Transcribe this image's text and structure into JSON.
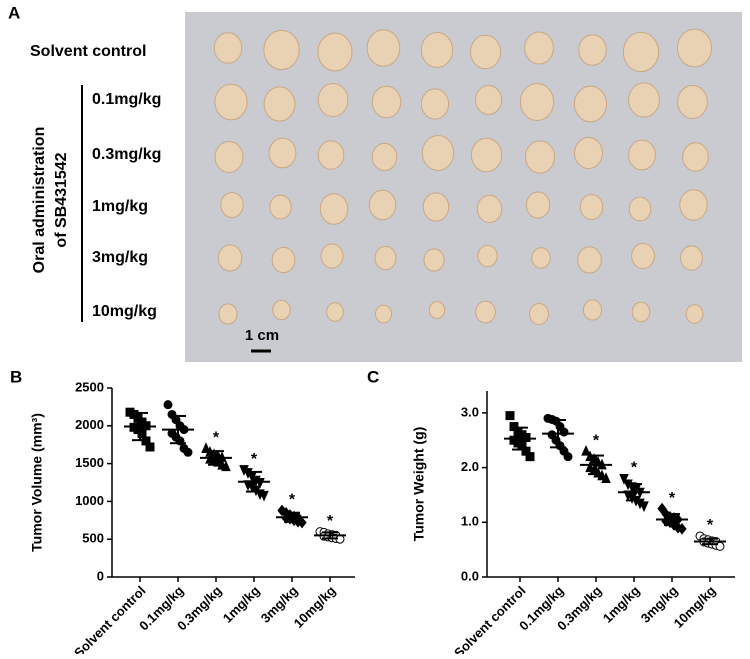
{
  "panel_a": {
    "label": "A",
    "rows": [
      "Solvent control",
      "0.1mg/kg",
      "0.3mg/kg",
      "1mg/kg",
      "3mg/kg",
      "10mg/kg"
    ],
    "group_label": [
      "Oral administration",
      "of SB431542"
    ],
    "scale_bar": "1 cm"
  },
  "chart_data": [
    {
      "type": "dot",
      "panel": "B",
      "ylabel": "Tumor Volume (mm³)",
      "categories": [
        "Solvent control",
        "0.1mg/kg",
        "0.3mg/kg",
        "1mg/kg",
        "3mg/kg",
        "10mg/kg"
      ],
      "markers": [
        "square",
        "circle",
        "triangle",
        "triangle-down",
        "diamond",
        "circle-open"
      ],
      "values": [
        [
          2180,
          2150,
          2100,
          2050,
          2000,
          1980,
          1950,
          1900,
          1800,
          1720
        ],
        [
          2280,
          2150,
          2080,
          2000,
          1950,
          1900,
          1850,
          1800,
          1700,
          1650
        ],
        [
          1700,
          1650,
          1620,
          1600,
          1580,
          1560,
          1540,
          1520,
          1480,
          1460
        ],
        [
          1420,
          1380,
          1330,
          1280,
          1250,
          1220,
          1200,
          1150,
          1100,
          1080
        ],
        [
          880,
          850,
          820,
          800,
          790,
          780,
          770,
          750,
          730,
          720
        ],
        [
          600,
          590,
          570,
          560,
          550,
          540,
          530,
          520,
          510,
          500
        ]
      ],
      "means": [
        1990,
        1950,
        1575,
        1260,
        790,
        550
      ],
      "sds": [
        180,
        180,
        90,
        130,
        60,
        40
      ],
      "significant": [
        false,
        false,
        true,
        true,
        true,
        true
      ],
      "significance_label": "*",
      "ylim": [
        0,
        2500
      ],
      "yticks": [
        0,
        500,
        1000,
        1500,
        2000,
        2500
      ],
      "color": "#000000"
    },
    {
      "type": "dot",
      "panel": "C",
      "ylabel": "Tumor Weight (g)",
      "categories": [
        "Solvent control",
        "0.1mg/kg",
        "0.3mg/kg",
        "1mg/kg",
        "3mg/kg",
        "10mg/kg"
      ],
      "markers": [
        "square",
        "circle",
        "triangle",
        "triangle-down",
        "diamond",
        "circle-open"
      ],
      "values": [
        [
          2.95,
          2.75,
          2.65,
          2.6,
          2.55,
          2.5,
          2.45,
          2.4,
          2.3,
          2.2
        ],
        [
          2.9,
          2.88,
          2.85,
          2.75,
          2.65,
          2.6,
          2.5,
          2.4,
          2.3,
          2.2
        ],
        [
          2.3,
          2.2,
          2.15,
          2.1,
          2.05,
          2.0,
          1.95,
          1.9,
          1.85,
          1.8
        ],
        [
          1.8,
          1.7,
          1.65,
          1.6,
          1.55,
          1.5,
          1.45,
          1.4,
          1.35,
          1.3
        ],
        [
          1.25,
          1.15,
          1.1,
          1.08,
          1.05,
          1.02,
          1.0,
          0.95,
          0.9,
          0.88
        ],
        [
          0.75,
          0.7,
          0.68,
          0.66,
          0.65,
          0.64,
          0.62,
          0.6,
          0.58,
          0.56
        ]
      ],
      "means": [
        2.53,
        2.62,
        2.05,
        1.55,
        1.05,
        0.65
      ],
      "sds": [
        0.2,
        0.25,
        0.17,
        0.15,
        0.1,
        0.05
      ],
      "significant": [
        false,
        false,
        true,
        true,
        true,
        true
      ],
      "significance_label": "*",
      "ylim": [
        0,
        3.4
      ],
      "yticks": [
        {
          "value": 0,
          "label": "0.0"
        },
        {
          "value": 1,
          "label": "1.0"
        },
        {
          "value": 2,
          "label": "2.0"
        },
        {
          "value": 3,
          "label": "3.0"
        }
      ],
      "color": "#000000"
    }
  ]
}
